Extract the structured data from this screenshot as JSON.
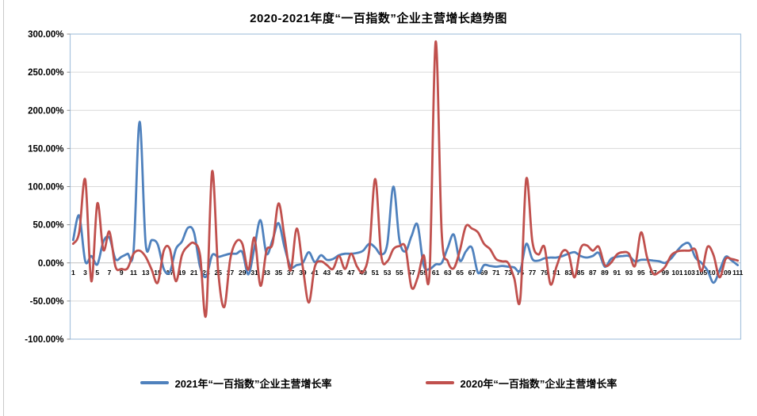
{
  "chart_data": {
    "type": "line",
    "title": "2020-2021年度“一百指数”企业主营增长趋势图",
    "ylabel": "",
    "xlabel": "",
    "ylim": [
      -100,
      300
    ],
    "y_tick_values": [
      300,
      250,
      200,
      150,
      100,
      50,
      0,
      -50,
      -100
    ],
    "y_tick_labels": [
      "300.00%",
      "250.00%",
      "200.00%",
      "150.00%",
      "100.00%",
      "50.00%",
      "0.00%",
      "-50.00%",
      "-100.00%"
    ],
    "x_range": [
      1,
      111
    ],
    "x_tick_labels": [
      "1",
      "3",
      "5",
      "7",
      "9",
      "11",
      "13",
      "15",
      "17",
      "19",
      "21",
      "23",
      "25",
      "27",
      "29",
      "31",
      "33",
      "35",
      "37",
      "39",
      "41",
      "43",
      "45",
      "47",
      "49",
      "51",
      "53",
      "55",
      "57",
      "59",
      "61",
      "63",
      "65",
      "67",
      "69",
      "71",
      "73",
      "75",
      "77",
      "79",
      "81",
      "83",
      "85",
      "87",
      "89",
      "91",
      "93",
      "95",
      "97",
      "99",
      "101",
      "103",
      "105",
      "107",
      "109",
      "111"
    ],
    "grid": true,
    "legend_position": "bottom",
    "unit": "percent",
    "series": [
      {
        "name": "2021年“一百指数”企业主营增长率",
        "color": "#4F81BD",
        "values": [
          30,
          62,
          2,
          9,
          -2,
          28,
          33,
          5,
          8,
          12,
          16,
          185,
          25,
          30,
          24,
          -8,
          -12,
          18,
          28,
          46,
          40,
          -5,
          -18,
          10,
          8,
          10,
          12,
          12,
          14,
          -15,
          20,
          56,
          12,
          30,
          52,
          20,
          -5,
          -3,
          0,
          14,
          1,
          10,
          4,
          5,
          10,
          12,
          12,
          13,
          16,
          25,
          20,
          11,
          25,
          100,
          30,
          15,
          35,
          50,
          -3,
          -8,
          -2,
          0,
          20,
          37,
          3,
          15,
          20,
          -13,
          -3,
          -4,
          -5,
          -4,
          -5,
          -6,
          -10,
          25,
          5,
          3,
          6,
          7,
          7,
          9,
          12,
          14,
          9,
          7,
          9,
          13,
          -5,
          5,
          8,
          9,
          9,
          2,
          4,
          4,
          3,
          2,
          0,
          6,
          16,
          24,
          25,
          7,
          0,
          -10,
          -26,
          -10,
          8,
          3,
          -3
        ]
      },
      {
        "name": "2020年“一百指数”企业主营增长率",
        "color": "#C0504D",
        "values": [
          25,
          40,
          109,
          -24,
          78,
          17,
          41,
          -5,
          -8,
          -7,
          12,
          16,
          8,
          -9,
          -26,
          16,
          18,
          -24,
          10,
          22,
          26,
          10,
          -68,
          120,
          -10,
          -58,
          5,
          28,
          25,
          -9,
          33,
          -30,
          16,
          25,
          78,
          33,
          -10,
          45,
          -5,
          -52,
          -5,
          2,
          -3,
          -8,
          9,
          -8,
          12,
          -5,
          -12,
          16,
          110,
          9,
          2,
          18,
          22,
          20,
          -32,
          -20,
          10,
          -12,
          290,
          40,
          2,
          -7,
          16,
          48,
          45,
          40,
          25,
          18,
          5,
          2,
          0,
          -20,
          -48,
          110,
          28,
          11,
          21,
          -28,
          -5,
          15,
          12,
          -19,
          19,
          23,
          16,
          21,
          -3,
          0,
          11,
          14,
          12,
          -4,
          40,
          7,
          -14,
          -12,
          -5,
          10,
          15,
          16,
          16,
          17,
          -11,
          21,
          10,
          -19,
          5,
          5,
          3
        ]
      }
    ]
  },
  "colors": {
    "plot_border": "#A9C4DE",
    "gridline": "#D9D9D9",
    "zero_axis_line": "#BFBFBF",
    "tick_mark": "#8C8C8C",
    "text": "#000000",
    "outer_border": "#C9C9C9"
  }
}
